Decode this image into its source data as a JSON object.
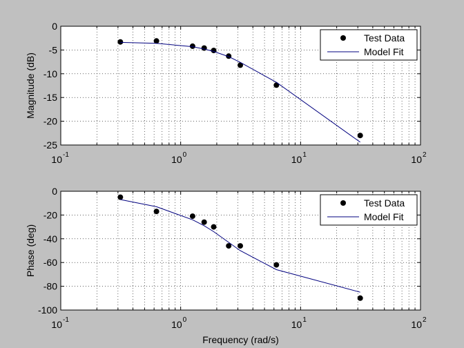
{
  "window": {
    "background": "#c0c0c0"
  },
  "chart_data": [
    {
      "type": "scatter",
      "xscale": "log",
      "xlim": [
        0.1,
        100
      ],
      "ylim": [
        -25,
        0
      ],
      "yticks": [
        0,
        -5,
        -10,
        -15,
        -20,
        -25
      ],
      "ytick_labels": [
        "0",
        "-5",
        "-10",
        "-15",
        "-20",
        "-25"
      ],
      "xtick_labels": [
        {
          "base": "10",
          "exp": "-1"
        },
        {
          "base": "10",
          "exp": "0"
        },
        {
          "base": "10",
          "exp": "1"
        },
        {
          "base": "10",
          "exp": "2"
        }
      ],
      "xlabel": "",
      "ylabel": "Magnitude (dB)",
      "grid": true,
      "legend_position": "top-right",
      "series": [
        {
          "name": "Test Data",
          "kind": "markers",
          "color": "#000000",
          "x": [
            0.314,
            0.628,
            1.257,
            1.571,
            1.885,
            2.513,
            3.142,
            6.283,
            31.42
          ],
          "y": [
            -3.3,
            -3.1,
            -4.2,
            -4.6,
            -5.1,
            -6.3,
            -8.2,
            -12.4,
            -23.0
          ]
        },
        {
          "name": "Model Fit",
          "kind": "line",
          "color": "#00007f",
          "x": [
            0.314,
            0.628,
            1.257,
            1.571,
            1.885,
            2.513,
            3.142,
            6.283,
            31.42
          ],
          "y": [
            -3.4,
            -3.6,
            -4.3,
            -4.8,
            -5.3,
            -6.4,
            -7.6,
            -11.8,
            -24.4
          ]
        }
      ]
    },
    {
      "type": "scatter",
      "xscale": "log",
      "xlim": [
        0.1,
        100
      ],
      "ylim": [
        -100,
        0
      ],
      "yticks": [
        0,
        -20,
        -40,
        -60,
        -80,
        -100
      ],
      "ytick_labels": [
        "0",
        "-20",
        "-40",
        "-60",
        "-80",
        "-100"
      ],
      "xtick_labels": [
        {
          "base": "10",
          "exp": "-1"
        },
        {
          "base": "10",
          "exp": "0"
        },
        {
          "base": "10",
          "exp": "1"
        },
        {
          "base": "10",
          "exp": "2"
        }
      ],
      "xlabel": "Frequency (rad/s)",
      "ylabel": "Phase (deg)",
      "grid": true,
      "legend_position": "top-right",
      "series": [
        {
          "name": "Test Data",
          "kind": "markers",
          "color": "#000000",
          "x": [
            0.314,
            0.628,
            1.257,
            1.571,
            1.885,
            2.513,
            3.142,
            6.283,
            31.42
          ],
          "y": [
            -5,
            -17,
            -21,
            -26,
            -30,
            -46,
            -46,
            -62,
            -90
          ]
        },
        {
          "name": "Model Fit",
          "kind": "line",
          "color": "#00007f",
          "x": [
            0.314,
            0.628,
            1.257,
            1.571,
            1.885,
            2.513,
            3.142,
            6.283,
            31.42
          ],
          "y": [
            -7,
            -13,
            -24,
            -29,
            -34,
            -43,
            -50,
            -66,
            -85
          ]
        }
      ]
    }
  ]
}
